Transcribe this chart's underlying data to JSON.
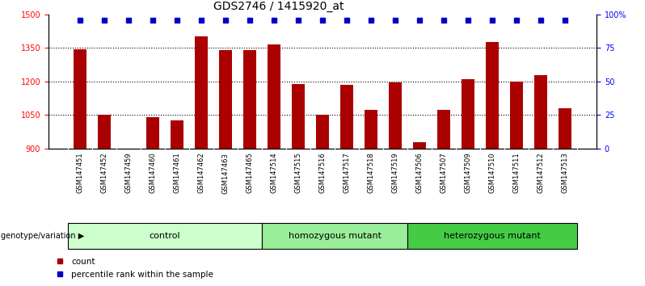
{
  "title": "GDS2746 / 1415920_at",
  "samples": [
    "GSM147451",
    "GSM147452",
    "GSM147459",
    "GSM147460",
    "GSM147461",
    "GSM147462",
    "GSM147463",
    "GSM147465",
    "GSM147514",
    "GSM147515",
    "GSM147516",
    "GSM147517",
    "GSM147518",
    "GSM147519",
    "GSM147506",
    "GSM147507",
    "GSM147509",
    "GSM147510",
    "GSM147511",
    "GSM147512",
    "GSM147513"
  ],
  "counts": [
    1345,
    1050,
    900,
    1040,
    1025,
    1400,
    1340,
    1340,
    1365,
    1190,
    1050,
    1185,
    1075,
    1195,
    930,
    1075,
    1210,
    1375,
    1200,
    1230,
    1080
  ],
  "percentile_ranks_pct": [
    100,
    100,
    95,
    95,
    95,
    100,
    100,
    100,
    100,
    100,
    100,
    95,
    95,
    100,
    95,
    95,
    95,
    100,
    100,
    100,
    100
  ],
  "group_defs": [
    [
      "control",
      0,
      7
    ],
    [
      "homozygous mutant",
      8,
      13
    ],
    [
      "heterozygous mutant",
      14,
      20
    ]
  ],
  "group_colors": {
    "control": "#ccffcc",
    "homozygous mutant": "#99ee99",
    "heterozygous mutant": "#44cc44"
  },
  "bar_color": "#aa0000",
  "dot_color": "#0000cc",
  "ylim_left": [
    900,
    1500
  ],
  "ylim_right": [
    0,
    100
  ],
  "yticks_left": [
    900,
    1050,
    1200,
    1350,
    1500
  ],
  "yticks_right": [
    0,
    25,
    50,
    75,
    100
  ],
  "ytick_right_labels": [
    "0",
    "25",
    "50",
    "75",
    "100%"
  ],
  "dotted_lines": [
    1050,
    1200,
    1350
  ],
  "bar_width": 0.55,
  "background_color": "#ffffff",
  "tick_fontsize": 7,
  "title_fontsize": 10,
  "genotype_label": "genotype/variation",
  "legend_count_label": "count",
  "legend_percentile_label": "percentile rank within the sample",
  "xtick_bg": "#cccccc"
}
